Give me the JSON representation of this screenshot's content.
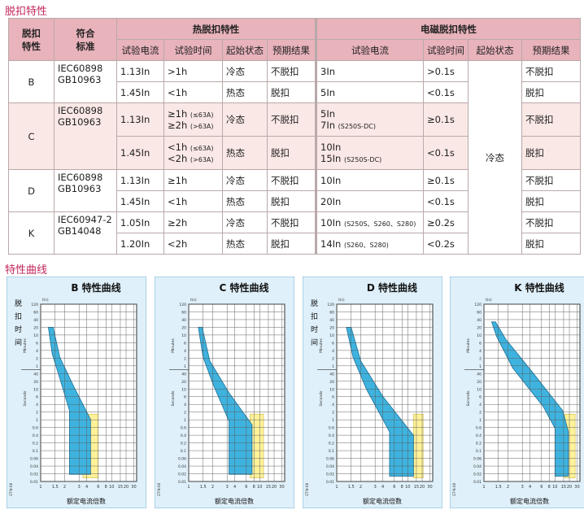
{
  "section1_title": "脱扣特性",
  "section2_title": "特性曲线",
  "table": {
    "head": {
      "trip_char": [
        "脱扣",
        "特性"
      ],
      "standard": [
        "符合",
        "标准"
      ],
      "thermal": "热脱扣特性",
      "magnetic": "电磁脱扣特性",
      "sub": [
        "试验电流",
        "试验时间",
        "起始状态",
        "预期结果",
        "试验电流",
        "试验时间",
        "起始状态",
        "预期结果"
      ]
    },
    "groups": [
      {
        "char": "B",
        "std": [
          "IEC60898",
          "GB10963"
        ],
        "rows": [
          {
            "tc": "1.13In",
            "tt": [
              ">1h"
            ],
            "ts": "冷态",
            "tr": "不脱扣",
            "mc": [
              {
                "main": "3In",
                "note": ""
              }
            ],
            "mt": ">0.1s",
            "mr": "不脱扣"
          },
          {
            "tc": "1.45In",
            "tt": [
              "<1h"
            ],
            "ts": "热态",
            "tr": "脱扣",
            "mc": [
              {
                "main": "5In",
                "note": ""
              }
            ],
            "mt": "<0.1s",
            "mr": "脱扣"
          }
        ]
      },
      {
        "char": "C",
        "std": [
          "IEC60898",
          "GB10963"
        ],
        "rows": [
          {
            "tc": "1.13In",
            "tt": [
              "≥1h",
              "≥2h"
            ],
            "ttn": [
              "(≤63A)",
              "(>63A)"
            ],
            "ts": "冷态",
            "tr": "不脱扣",
            "mc": [
              {
                "main": "5In",
                "note": ""
              },
              {
                "main": "7In",
                "note": "(S250S-DC)"
              }
            ],
            "mt": "≥0.1s",
            "mr": "不脱扣"
          },
          {
            "tc": "1.45In",
            "tt": [
              "<1h",
              "<2h"
            ],
            "ttn": [
              "(≤63A)",
              "(>63A)"
            ],
            "ts": "热态",
            "tr": "脱扣",
            "mc": [
              {
                "main": "10In",
                "note": ""
              },
              {
                "main": "15In",
                "note": "(S250S-DC)"
              }
            ],
            "mt": "<0.1s",
            "mr": "脱扣"
          }
        ]
      },
      {
        "char": "D",
        "std": [
          "IEC60898",
          "GB10963"
        ],
        "rows": [
          {
            "tc": "1.13In",
            "tt": [
              "≥1h"
            ],
            "ts": "冷态",
            "tr": "不脱扣",
            "mc": [
              {
                "main": "10In",
                "note": ""
              }
            ],
            "mt": "≥0.1s",
            "mr": "不脱扣"
          },
          {
            "tc": "1.45In",
            "tt": [
              "<1h"
            ],
            "ts": "热态",
            "tr": "脱扣",
            "mc": [
              {
                "main": "20In",
                "note": ""
              }
            ],
            "mt": "<0.1s",
            "mr": "脱扣"
          }
        ]
      },
      {
        "char": "K",
        "std": [
          "IEC60947-2",
          "GB14048"
        ],
        "rows": [
          {
            "tc": "1.05In",
            "tt": [
              "≥2h"
            ],
            "ts": "冷态",
            "tr": "不脱扣",
            "mc": [
              {
                "main": "10In",
                "note": "(S250S、S260、S280)"
              }
            ],
            "mt": "≥0.2s",
            "mr": "不脱扣"
          },
          {
            "tc": "1.20In",
            "tt": [
              "<2h"
            ],
            "ts": "热态",
            "tr": "脱扣",
            "mc": [
              {
                "main": "14In",
                "note": "(S260、S280)"
              }
            ],
            "mt": "<0.2s",
            "mr": "脱扣"
          }
        ]
      }
    ],
    "magnetic_start_state": "冷态"
  },
  "charts": [
    {
      "letter": "B",
      "title": "B 特性曲线",
      "ylabel_cn": [
        "脱",
        "扣",
        "时",
        "间"
      ]
    },
    {
      "letter": "C",
      "title": "C 特性曲线",
      "ylabel_cn": []
    },
    {
      "letter": "D",
      "title": "D 特性曲线",
      "ylabel_cn": [
        "脱",
        "扣",
        "时",
        "间"
      ]
    },
    {
      "letter": "K",
      "title": "K 特性曲线",
      "ylabel_cn": []
    }
  ],
  "chart_axis": {
    "xlabel": "额定电流倍数",
    "y_ticks": [
      "120",
      "60",
      "40",
      "20",
      "10",
      "6",
      "4",
      "2",
      "1",
      "40",
      "20",
      "10",
      "6",
      "4",
      "2",
      "1",
      "0.6",
      "0.4",
      "0.2",
      "0.1",
      "0.06",
      "0.04",
      "0.02",
      "0.01"
    ],
    "x_ticks": [
      "1",
      "1.5",
      "2",
      "3",
      "4",
      "6",
      "8",
      "10",
      "15",
      "20",
      "30"
    ],
    "unit_minutes": "Minutes",
    "unit_seconds": "Seconds",
    "top_tag": "t(s)",
    "side_code": "GT-N-08"
  },
  "colors": {
    "header": "#e8b3bb",
    "pink_row": "#fae8e6",
    "title": "#c2265a",
    "blue": "#3fb3df",
    "yellow": "#fff29a"
  }
}
